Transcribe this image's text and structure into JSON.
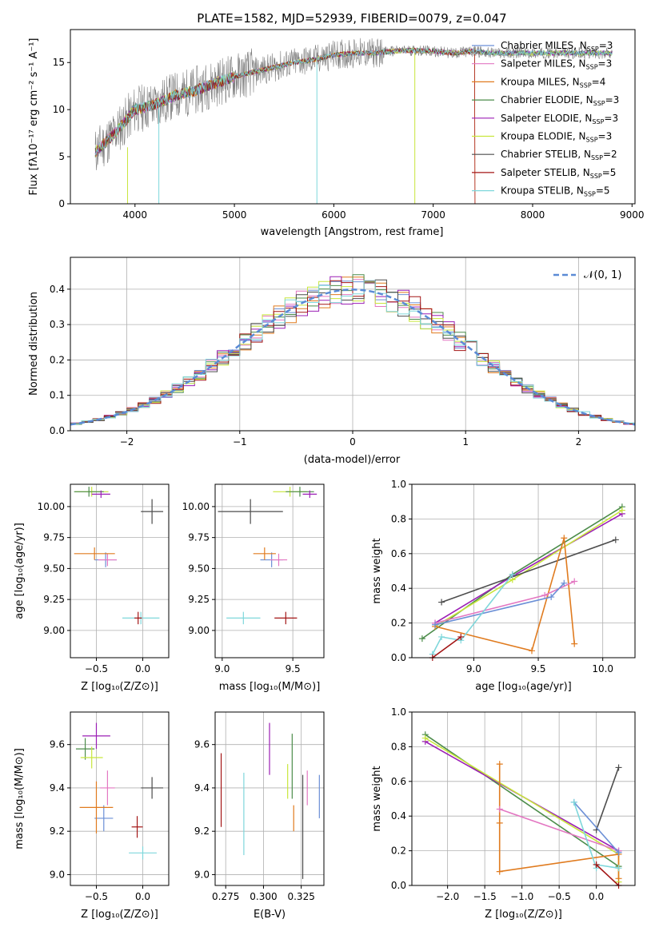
{
  "colors": {
    "chabrier_miles": "#6b8fd6",
    "salpeter_miles": "#e377c2",
    "kroupa_miles": "#e07b1f",
    "chabrier_elodie": "#4c8c4a",
    "salpeter_elodie": "#9b1fb5",
    "kroupa_elodie": "#c8e63c",
    "chabrier_stelib": "#4d4d4d",
    "salpeter_stelib": "#a31515",
    "kroupa_stelib": "#7fd7db",
    "data": "#808080",
    "normal": "#5b8bd6"
  },
  "chart_data": [
    {
      "id": "spectrum",
      "type": "line",
      "title": "PLATE=1582, MJD=52939, FIBERID=0079, z=0.047",
      "xlabel": "wavelength [Angstrom, rest frame]",
      "ylabel": "Flux [fλ10⁻¹⁷ erg cm⁻² s⁻¹ A⁻¹]",
      "xlim": [
        3350,
        9030
      ],
      "ylim": [
        0,
        18.5
      ],
      "xticks": [
        "4000",
        "5000",
        "6000",
        "7000",
        "8000",
        "9000"
      ],
      "yticks": [
        "0",
        "5",
        "10",
        "15"
      ],
      "data_x_range": [
        3600,
        8800
      ],
      "continuum": {
        "x": [
          3600,
          3800,
          4000,
          4200,
          4400,
          4600,
          4800,
          5000,
          5200,
          5400,
          5600,
          5800,
          6000,
          6200,
          6400,
          6600,
          6800,
          7000,
          7200,
          7400,
          7600,
          7800,
          8000,
          8200,
          8400,
          8600,
          8800
        ],
        "y": [
          5.5,
          7.5,
          10.0,
          10.5,
          11.5,
          12.0,
          12.8,
          13.5,
          14.0,
          14.5,
          15.0,
          15.3,
          15.8,
          16.0,
          16.0,
          16.2,
          16.3,
          16.2,
          16.0,
          16.2,
          16.0,
          16.0,
          16.0,
          16.0,
          16.0,
          16.0,
          16.0
        ]
      },
      "legend": [
        {
          "label": "Chabrier MILES, N",
          "sub": "SSP",
          "suffix": "=3",
          "color": "#6b8fd6"
        },
        {
          "label": "Salpeter MILES, N",
          "sub": "SSP",
          "suffix": "=3",
          "color": "#e377c2"
        },
        {
          "label": "Kroupa MILES, N",
          "sub": "SSP",
          "suffix": "=4",
          "color": "#e07b1f"
        },
        {
          "label": "Chabrier ELODIE, N",
          "sub": "SSP",
          "suffix": "=3",
          "color": "#4c8c4a"
        },
        {
          "label": "Salpeter ELODIE, N",
          "sub": "SSP",
          "suffix": "=3",
          "color": "#9b1fb5"
        },
        {
          "label": "Kroupa ELODIE, N",
          "sub": "SSP",
          "suffix": "=3",
          "color": "#c8e63c"
        },
        {
          "label": "Chabrier STELIB, N",
          "sub": "SSP",
          "suffix": "=2",
          "color": "#4d4d4d"
        },
        {
          "label": "Salpeter STELIB, N",
          "sub": "SSP",
          "suffix": "=5",
          "color": "#a31515"
        },
        {
          "label": "Kroupa STELIB, N",
          "sub": "SSP",
          "suffix": "=5",
          "color": "#7fd7db"
        }
      ]
    },
    {
      "id": "residuals",
      "type": "line",
      "xlabel": "(data-model)/error",
      "ylabel": "Normed distribution",
      "xlim": [
        -2.5,
        2.5
      ],
      "ylim": [
        0,
        0.49
      ],
      "xticks": [
        "−2",
        "−1",
        "0",
        "1",
        "2"
      ],
      "yticks": [
        "0.0",
        "0.1",
        "0.2",
        "0.3",
        "0.4"
      ],
      "legend_label": "𝒩(0, 1)",
      "bin_width": 0.1,
      "grid": true
    },
    {
      "id": "age_vs_z",
      "type": "scatter",
      "xlabel": "Z [log₁₀(Z/Z⊙)]",
      "ylabel": "age  [log₁₀(age/yr)]",
      "xlim": [
        -0.78,
        0.28
      ],
      "ylim": [
        8.78,
        10.18
      ],
      "xticks": [
        "−0.5",
        "0.0"
      ],
      "yticks": [
        "9.00",
        "9.25",
        "9.50",
        "9.75",
        "10.00"
      ],
      "grid": true,
      "points": [
        {
          "x": 0.1,
          "y": 9.96,
          "xerr": 0.12,
          "yerr": 0.1,
          "color": "#4d4d4d"
        },
        {
          "x": -0.4,
          "y": 9.57,
          "xerr": 0.12,
          "yerr": 0.06,
          "color": "#6b8fd6"
        },
        {
          "x": -0.38,
          "y": 9.57,
          "xerr": 0.1,
          "yerr": 0.05,
          "color": "#e377c2"
        },
        {
          "x": -0.55,
          "y": 10.12,
          "xerr": 0.18,
          "yerr": 0.04,
          "color": "#c8e63c"
        },
        {
          "x": -0.58,
          "y": 10.12,
          "xerr": 0.16,
          "yerr": 0.04,
          "color": "#4c8c4a"
        },
        {
          "x": -0.45,
          "y": 10.1,
          "xerr": 0.1,
          "yerr": 0.03,
          "color": "#9b1fb5"
        },
        {
          "x": -0.52,
          "y": 9.62,
          "xerr": 0.22,
          "yerr": 0.05,
          "color": "#e07b1f"
        },
        {
          "x": -0.02,
          "y": 9.1,
          "xerr": 0.2,
          "yerr": 0.05,
          "color": "#7fd7db"
        },
        {
          "x": -0.05,
          "y": 9.1,
          "xerr": 0.04,
          "yerr": 0.05,
          "color": "#a31515"
        }
      ]
    },
    {
      "id": "age_vs_mass",
      "type": "scatter",
      "xlabel": "mass [log₁₀(M/M⊙)]",
      "xlim": [
        8.95,
        9.72
      ],
      "ylim": [
        8.78,
        10.18
      ],
      "xticks": [
        "9.0",
        "9.5"
      ],
      "yticks": [
        "9.00",
        "9.25",
        "9.50",
        "9.75",
        "10.00"
      ],
      "grid": true,
      "points": [
        {
          "x": 9.2,
          "y": 9.96,
          "xerr": 0.23,
          "yerr": 0.1,
          "color": "#4d4d4d"
        },
        {
          "x": 9.35,
          "y": 9.57,
          "xerr": 0.08,
          "yerr": 0.06,
          "color": "#6b8fd6"
        },
        {
          "x": 9.4,
          "y": 9.57,
          "xerr": 0.06,
          "yerr": 0.05,
          "color": "#e377c2"
        },
        {
          "x": 9.48,
          "y": 10.12,
          "xerr": 0.12,
          "yerr": 0.04,
          "color": "#c8e63c"
        },
        {
          "x": 9.55,
          "y": 10.12,
          "xerr": 0.1,
          "yerr": 0.04,
          "color": "#4c8c4a"
        },
        {
          "x": 9.62,
          "y": 10.1,
          "xerr": 0.05,
          "yerr": 0.03,
          "color": "#9b1fb5"
        },
        {
          "x": 9.3,
          "y": 9.62,
          "xerr": 0.08,
          "yerr": 0.05,
          "color": "#e07b1f"
        },
        {
          "x": 9.15,
          "y": 9.1,
          "xerr": 0.12,
          "yerr": 0.05,
          "color": "#7fd7db"
        },
        {
          "x": 9.45,
          "y": 9.1,
          "xerr": 0.08,
          "yerr": 0.05,
          "color": "#a31515"
        }
      ]
    },
    {
      "id": "weight_vs_age",
      "type": "line",
      "xlabel": "age  [log₁₀(age/yr)]",
      "ylabel": "mass weight",
      "xlim": [
        8.52,
        10.25
      ],
      "ylim": [
        0.0,
        1.0
      ],
      "xticks": [
        "9.0",
        "9.5",
        "10.0"
      ],
      "yticks": [
        "0.0",
        "0.2",
        "0.4",
        "0.6",
        "0.8",
        "1.0"
      ],
      "grid": true,
      "series": [
        {
          "color": "#4c8c4a",
          "x": [
            8.6,
            9.3,
            10.15
          ],
          "y": [
            0.11,
            0.48,
            0.87
          ]
        },
        {
          "color": "#9b1fb5",
          "x": [
            8.7,
            9.3,
            10.15
          ],
          "y": [
            0.2,
            0.47,
            0.83
          ]
        },
        {
          "color": "#c8e63c",
          "x": [
            8.7,
            9.3,
            10.15
          ],
          "y": [
            0.18,
            0.45,
            0.85
          ]
        },
        {
          "color": "#4d4d4d",
          "x": [
            8.75,
            10.1
          ],
          "y": [
            0.32,
            0.68
          ]
        },
        {
          "color": "#e07b1f",
          "x": [
            8.7,
            9.45,
            9.7,
            9.78
          ],
          "y": [
            0.18,
            0.04,
            0.69,
            0.08
          ]
        },
        {
          "color": "#e377c2",
          "x": [
            8.7,
            9.55,
            9.78
          ],
          "y": [
            0.2,
            0.36,
            0.44
          ]
        },
        {
          "color": "#6b8fd6",
          "x": [
            8.7,
            9.6,
            9.7
          ],
          "y": [
            0.19,
            0.35,
            0.43
          ]
        },
        {
          "color": "#7fd7db",
          "x": [
            8.68,
            8.75,
            8.9,
            9.3
          ],
          "y": [
            0.02,
            0.12,
            0.1,
            0.48
          ]
        },
        {
          "color": "#a31515",
          "x": [
            8.68,
            8.9
          ],
          "y": [
            0.0,
            0.12
          ]
        }
      ]
    },
    {
      "id": "mass_vs_z",
      "type": "scatter",
      "xlabel": "Z [log₁₀(Z/Z⊙)]",
      "ylabel": "mass [log₁₀(M/M⊙)]",
      "xlim": [
        -0.78,
        0.28
      ],
      "ylim": [
        8.95,
        9.75
      ],
      "xticks": [
        "−0.5",
        "0.0"
      ],
      "yticks": [
        "9.0",
        "9.2",
        "9.4",
        "9.6"
      ],
      "grid": true,
      "points": [
        {
          "x": 0.1,
          "y": 9.4,
          "xerr": 0.12,
          "yerr": 0.05,
          "color": "#4d4d4d"
        },
        {
          "x": -0.42,
          "y": 9.26,
          "xerr": 0.1,
          "yerr": 0.06,
          "color": "#6b8fd6"
        },
        {
          "x": -0.38,
          "y": 9.4,
          "xerr": 0.08,
          "yerr": 0.08,
          "color": "#e377c2"
        },
        {
          "x": -0.5,
          "y": 9.64,
          "xerr": 0.15,
          "yerr": 0.06,
          "color": "#9b1fb5"
        },
        {
          "x": -0.62,
          "y": 9.58,
          "xerr": 0.1,
          "yerr": 0.05,
          "color": "#4c8c4a"
        },
        {
          "x": -0.55,
          "y": 9.54,
          "xerr": 0.12,
          "yerr": 0.05,
          "color": "#c8e63c"
        },
        {
          "x": -0.5,
          "y": 9.31,
          "xerr": 0.18,
          "yerr": 0.12,
          "color": "#e07b1f"
        },
        {
          "x": -0.06,
          "y": 9.22,
          "xerr": 0.06,
          "yerr": 0.05,
          "color": "#a31515"
        },
        {
          "x": 0.0,
          "y": 9.1,
          "xerr": 0.15,
          "yerr": 0.03,
          "color": "#7fd7db"
        }
      ]
    },
    {
      "id": "mass_vs_ebv",
      "type": "scatter",
      "xlabel": "E(B-V)",
      "xlim": [
        0.268,
        0.34
      ],
      "ylim": [
        8.95,
        9.75
      ],
      "xticks": [
        "0.275",
        "0.300",
        "0.325"
      ],
      "yticks": [
        "9.0",
        "9.2",
        "9.4",
        "9.6"
      ],
      "grid": true,
      "points": [
        {
          "x": 0.272,
          "y": 9.39,
          "yerr": 0.17,
          "color": "#a31515"
        },
        {
          "x": 0.287,
          "y": 9.28,
          "yerr": 0.19,
          "color": "#7fd7db"
        },
        {
          "x": 0.304,
          "y": 9.58,
          "yerr": 0.12,
          "color": "#9b1fb5"
        },
        {
          "x": 0.316,
          "y": 9.43,
          "yerr": 0.08,
          "color": "#c8e63c"
        },
        {
          "x": 0.319,
          "y": 9.5,
          "yerr": 0.15,
          "color": "#4c8c4a"
        },
        {
          "x": 0.32,
          "y": 9.26,
          "yerr": 0.06,
          "color": "#e07b1f"
        },
        {
          "x": 0.326,
          "y": 9.22,
          "yerr": 0.24,
          "color": "#4d4d4d"
        },
        {
          "x": 0.329,
          "y": 9.4,
          "yerr": 0.08,
          "color": "#e377c2"
        },
        {
          "x": 0.337,
          "y": 9.36,
          "yerr": 0.1,
          "color": "#6b8fd6"
        }
      ]
    },
    {
      "id": "weight_vs_z",
      "type": "line",
      "xlabel": "Z [log₁₀(Z/Z⊙)]",
      "ylabel": "mass weight",
      "xlim": [
        -2.48,
        0.52
      ],
      "ylim": [
        0.0,
        1.0
      ],
      "xticks": [
        "−2.0",
        "−1.5",
        "−1.0",
        "−0.5",
        "0.0"
      ],
      "yticks": [
        "0.0",
        "0.2",
        "0.4",
        "0.6",
        "0.8",
        "1.0"
      ],
      "grid": true,
      "series": [
        {
          "color": "#4c8c4a",
          "x": [
            -2.3,
            0.3
          ],
          "y": [
            0.87,
            0.11
          ]
        },
        {
          "color": "#9b1fb5",
          "x": [
            -2.3,
            0.3
          ],
          "y": [
            0.83,
            0.2
          ]
        },
        {
          "color": "#c8e63c",
          "x": [
            -2.3,
            0.3,
            0.3
          ],
          "y": [
            0.85,
            0.18,
            0.02
          ]
        },
        {
          "color": "#4d4d4d",
          "x": [
            0.0,
            0.3
          ],
          "y": [
            0.32,
            0.68
          ]
        },
        {
          "color": "#e07b1f",
          "x": [
            -1.3,
            -1.3,
            -1.3,
            0.3,
            0.3
          ],
          "y": [
            0.7,
            0.36,
            0.08,
            0.18,
            0.04
          ]
        },
        {
          "color": "#e377c2",
          "x": [
            -1.3,
            0.3
          ],
          "y": [
            0.44,
            0.2
          ]
        },
        {
          "color": "#6b8fd6",
          "x": [
            -0.3,
            0.3
          ],
          "y": [
            0.48,
            0.19
          ]
        },
        {
          "color": "#7fd7db",
          "x": [
            -0.3,
            0.0,
            0.0,
            0.3
          ],
          "y": [
            0.48,
            0.1,
            0.12,
            0.1
          ]
        },
        {
          "color": "#a31515",
          "x": [
            0.0,
            0.3
          ],
          "y": [
            0.12,
            0.0
          ]
        }
      ]
    }
  ]
}
